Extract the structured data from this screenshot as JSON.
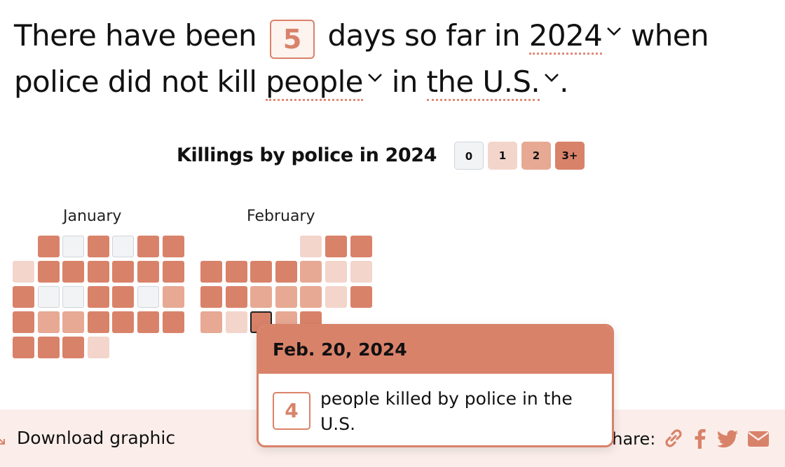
{
  "headline": {
    "part1": "There have been",
    "count": "5",
    "part2": "days so far in",
    "year": "2024",
    "part3": "when",
    "part4": "police did not kill",
    "subject": "people",
    "part5": "in",
    "place": "the U.S.",
    "period": "."
  },
  "legend": {
    "title": "Killings by police in 2024",
    "items": [
      {
        "label": "0",
        "color": "#f1f3f5"
      },
      {
        "label": "1",
        "color": "#f3d5cc"
      },
      {
        "label": "2",
        "color": "#e7a994"
      },
      {
        "label": "3+",
        "color": "#d9826a"
      }
    ]
  },
  "calendar": {
    "months": [
      {
        "name": "January",
        "levels": [
          3,
          0,
          3,
          0,
          3,
          3,
          1,
          3,
          3,
          3,
          3,
          3,
          3,
          3,
          0,
          0,
          3,
          3,
          0,
          2,
          3,
          2,
          2,
          3,
          3,
          3,
          3,
          3,
          3,
          3,
          1
        ]
      },
      {
        "name": "February",
        "levels": [
          1,
          3,
          3,
          3,
          3,
          3,
          3,
          2,
          1,
          1,
          3,
          3,
          2,
          2,
          2,
          1,
          3,
          2,
          1,
          3,
          2,
          3
        ]
      }
    ]
  },
  "tooltip": {
    "date": "Feb. 20, 2024",
    "count": "4",
    "text": "people killed by police in the U.S."
  },
  "footer": {
    "download_label": "Download graphic",
    "share_label": "Share:"
  },
  "colors": {
    "accent": "#d9826a",
    "bar_bg": "#fbeeea"
  }
}
